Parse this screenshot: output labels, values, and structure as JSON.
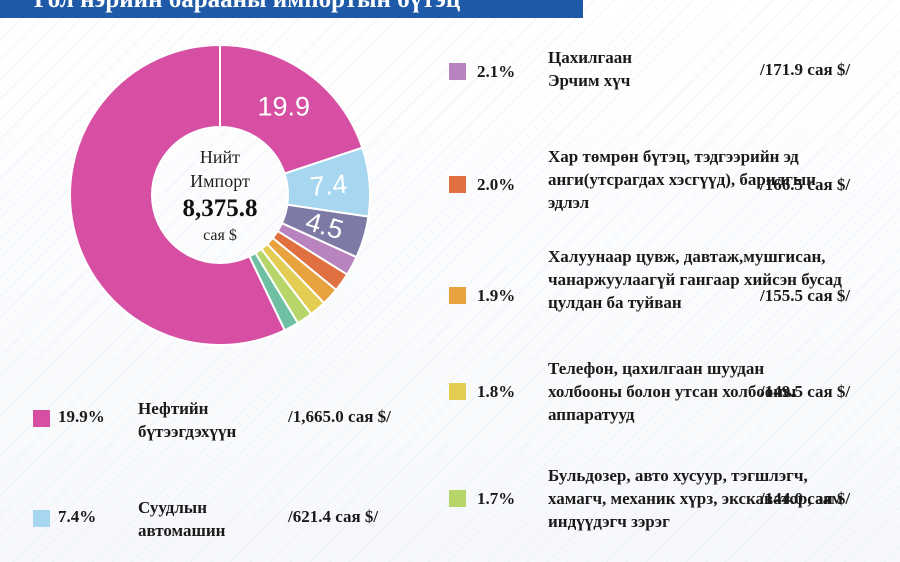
{
  "title": "Гол нэрийн барааны импортын бүтэц",
  "center": {
    "line1": "Нийт",
    "line2": "Импорт",
    "value": "8,375.8",
    "unit": "сая $"
  },
  "chart_data": {
    "type": "pie",
    "title": "Гол нэрийн барааны импортын бүтэц",
    "total": 8375.8,
    "unit": "сая $",
    "slices": [
      {
        "label": "Нефтийн бүтээгдэхүүн",
        "pct": 19.9,
        "value": 1665.0,
        "color": "#d64fa3",
        "show_label": true
      },
      {
        "label": "Суудлын автомашин",
        "pct": 7.4,
        "value": 621.4,
        "color": "#a6d6f0",
        "show_label": true
      },
      {
        "label": "",
        "pct": 4.5,
        "value": null,
        "color": "#7e7aa6",
        "show_label": true
      },
      {
        "label": "Цахилгаан Эрчим хүч",
        "pct": 2.1,
        "value": 171.9,
        "color": "#b983bf",
        "show_label": false
      },
      {
        "label": "Хар төмрөн бүтэц, тэдгээрийн эд анги(утсрагдах хэсгүүд), барилгын эдлэл",
        "pct": 2.0,
        "value": 166.5,
        "color": "#e0703f",
        "show_label": false
      },
      {
        "label": "Халуунаар цувж, давтаж,мушгисан, чанаржуулаагүй гангаар хийсэн бусад цулдан ба туйван",
        "pct": 1.9,
        "value": 155.5,
        "color": "#e8a23e",
        "show_label": false
      },
      {
        "label": "Телефон, цахилгаан шуудан холбооны болон утсан холбооны аппаратууд",
        "pct": 1.8,
        "value": 149.5,
        "color": "#e3cd52",
        "show_label": false
      },
      {
        "label": "Бульдозер, авто хусуур, тэгшлэгч, хамагч, механик хүрз, экскаватор, зам индүүдэгч зэрэг",
        "pct": 1.7,
        "value": 144.0,
        "color": "#b6d66a",
        "show_label": false
      },
      {
        "label": "",
        "pct": 1.6,
        "value": null,
        "color": "#6fc0a3",
        "show_label": false
      },
      {
        "label": "",
        "pct": 57.1,
        "value": null,
        "color": "#d64fa3",
        "show_label": false
      }
    ]
  },
  "legend": [
    {
      "pct": "19.9%",
      "name": "Нефтийн бүтээгдэхүүн",
      "value": "/1,665.0 сая $/",
      "color": "#d64fa3"
    },
    {
      "pct": "7.4%",
      "name": "Суудлын автомашин",
      "value": "/621.4 сая $/",
      "color": "#a6d6f0"
    },
    {
      "pct": "2.1%",
      "name": "Цахилгаан Эрчим хүч",
      "value": "/171.9 сая $/",
      "color": "#b983bf"
    },
    {
      "pct": "2.0%",
      "name": "Хар төмрөн бүтэц, тэдгээрийн эд анги(утсрагдах хэсгүүд), барилгын эдлэл",
      "value": "/166.5 сая $/",
      "color": "#e0703f"
    },
    {
      "pct": "1.9%",
      "name": "Халуунаар цувж, давтаж,мушгисан, чанаржуулаагүй гангаар хийсэн бусад цулдан ба туйван",
      "value": "/155.5 сая $/",
      "color": "#e8a23e"
    },
    {
      "pct": "1.8%",
      "name": "Телефон, цахилгаан шуудан холбооны болон утсан холбооны аппаратууд",
      "value": "/149.5 сая $/",
      "color": "#e3cd52"
    },
    {
      "pct": "1.7%",
      "name": "Бульдозер, авто хусуур, тэгшлэгч, хамагч, механик хүрз, экскаватор, зам индүүдэгч зэрэг",
      "value": "/144.0 сая $/",
      "color": "#b6d66a"
    }
  ]
}
